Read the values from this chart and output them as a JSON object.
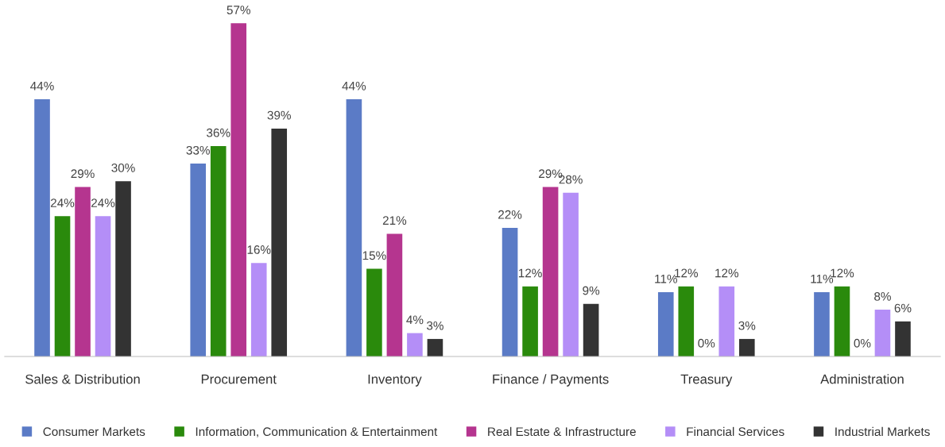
{
  "chart_data": {
    "type": "bar",
    "categories": [
      "Sales & Distribution",
      "Procurement",
      "Inventory",
      "Finance / Payments",
      "Treasury",
      "Administration"
    ],
    "series": [
      {
        "name": "Consumer Markets",
        "color": "#5b7bc6",
        "values": [
          44,
          33,
          44,
          22,
          11,
          11
        ],
        "value_labels": [
          "44%",
          "33%",
          "44%",
          "22%",
          "11%",
          "11%"
        ]
      },
      {
        "name": "Information, Communication & Entertainment",
        "color": "#2a8a0c",
        "values": [
          24,
          36,
          15,
          12,
          12,
          12
        ],
        "value_labels": [
          "24%",
          "36%",
          "15%",
          "12%",
          "12%",
          "12%"
        ]
      },
      {
        "name": "Real Estate & Infrastructure",
        "color": "#b5358f",
        "values": [
          29,
          57,
          21,
          29,
          0,
          0
        ],
        "value_labels": [
          "29%",
          "57%",
          "21%",
          "29%",
          "0%",
          "0%"
        ]
      },
      {
        "name": "Financial Services",
        "color": "#b48ef7",
        "values": [
          24,
          16,
          4,
          28,
          12,
          8
        ],
        "value_labels": [
          "24%",
          "16%",
          "4%",
          "28%",
          "12%",
          "8%"
        ]
      },
      {
        "name": "Industrial Markets",
        "color": "#333333",
        "values": [
          30,
          39,
          3,
          9,
          3,
          6
        ],
        "value_labels": [
          "30%",
          "39%",
          "3%",
          "9%",
          "3%",
          "6%"
        ]
      }
    ],
    "tick_labels": "x",
    "grid": false,
    "legend": "bottom"
  }
}
